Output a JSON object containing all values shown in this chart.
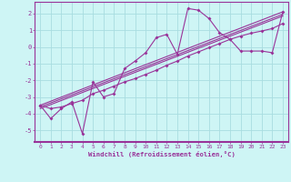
{
  "title": "",
  "xlabel": "Windchill (Refroidissement éolien,°C)",
  "bg_color": "#cef5f5",
  "grid_color": "#a8dde0",
  "line_color": "#993399",
  "xlim": [
    -0.5,
    23.5
  ],
  "ylim": [
    -5.7,
    2.7
  ],
  "xticks": [
    0,
    1,
    2,
    3,
    4,
    5,
    6,
    7,
    8,
    9,
    10,
    11,
    12,
    13,
    14,
    15,
    16,
    17,
    18,
    19,
    20,
    21,
    22,
    23
  ],
  "yticks": [
    -5,
    -4,
    -3,
    -2,
    -1,
    0,
    1,
    2
  ],
  "series1_x": [
    0,
    1,
    2,
    3,
    4,
    5,
    6,
    7,
    8,
    9,
    10,
    11,
    12,
    13,
    14,
    15,
    16,
    17,
    18,
    19,
    20,
    21,
    22,
    23
  ],
  "series1_y": [
    -3.5,
    -4.3,
    -3.7,
    -3.3,
    -5.2,
    -2.1,
    -3.0,
    -2.8,
    -1.3,
    -0.85,
    -0.35,
    0.55,
    0.75,
    -0.45,
    2.3,
    2.2,
    1.7,
    0.85,
    0.45,
    -0.25,
    -0.25,
    -0.25,
    -0.35,
    2.1
  ],
  "series2_x": [
    0,
    1,
    2,
    3,
    4,
    5,
    6,
    7,
    8,
    9,
    10,
    11,
    12,
    13,
    14,
    15,
    16,
    17,
    18,
    19,
    20,
    21,
    22,
    23
  ],
  "series2_y": [
    -3.5,
    -3.7,
    -3.6,
    -3.4,
    -3.2,
    -2.8,
    -2.6,
    -2.35,
    -2.1,
    -1.9,
    -1.65,
    -1.4,
    -1.1,
    -0.85,
    -0.55,
    -0.3,
    -0.05,
    0.2,
    0.45,
    0.65,
    0.82,
    0.95,
    1.1,
    1.4
  ],
  "series3_x": [
    0,
    23
  ],
  "series3_y": [
    -3.5,
    2.1
  ],
  "series4_x": [
    0,
    23
  ],
  "series4_y": [
    -3.6,
    1.95
  ],
  "series5_x": [
    0,
    23
  ],
  "series5_y": [
    -3.7,
    1.85
  ]
}
